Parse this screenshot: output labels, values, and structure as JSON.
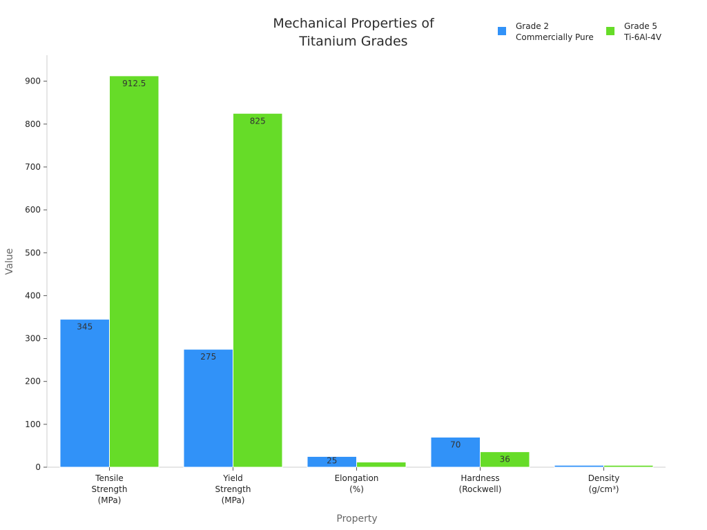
{
  "chart_data": {
    "type": "bar",
    "title": "Mechanical Properties of Titanium Grades",
    "title_lines": [
      "Mechanical Properties of",
      "Titanium Grades"
    ],
    "xlabel": "Property",
    "ylabel": "Value",
    "ylim": [
      0,
      960
    ],
    "yticks": [
      0,
      100,
      200,
      300,
      400,
      500,
      600,
      700,
      800,
      900
    ],
    "grid": false,
    "legend_position": "top-right",
    "categories": [
      "Tensile\nStrength\n(MPa)",
      "Yield\nStrength\n(MPa)",
      "Elongation\n(%)",
      "Hardness\n(Rockwell)",
      "Density\n(g/cm³)"
    ],
    "series": [
      {
        "name": "Grade 2\nCommercially Pure",
        "color": "#3192f8",
        "values": [
          345,
          275,
          25,
          70,
          4.51
        ],
        "labels": [
          "345",
          "275",
          "25",
          "70",
          ""
        ],
        "label_sizes": [
          "normal",
          "normal",
          "small",
          "normal",
          "none"
        ]
      },
      {
        "name": "Grade 5\nTi-6Al-4V",
        "color": "#66dc28",
        "values": [
          912.5,
          825,
          12,
          36,
          4.43
        ],
        "labels": [
          "912.5",
          "825",
          "",
          "36",
          ""
        ],
        "label_sizes": [
          "normal",
          "normal",
          "none",
          "normal",
          "none"
        ]
      }
    ]
  }
}
